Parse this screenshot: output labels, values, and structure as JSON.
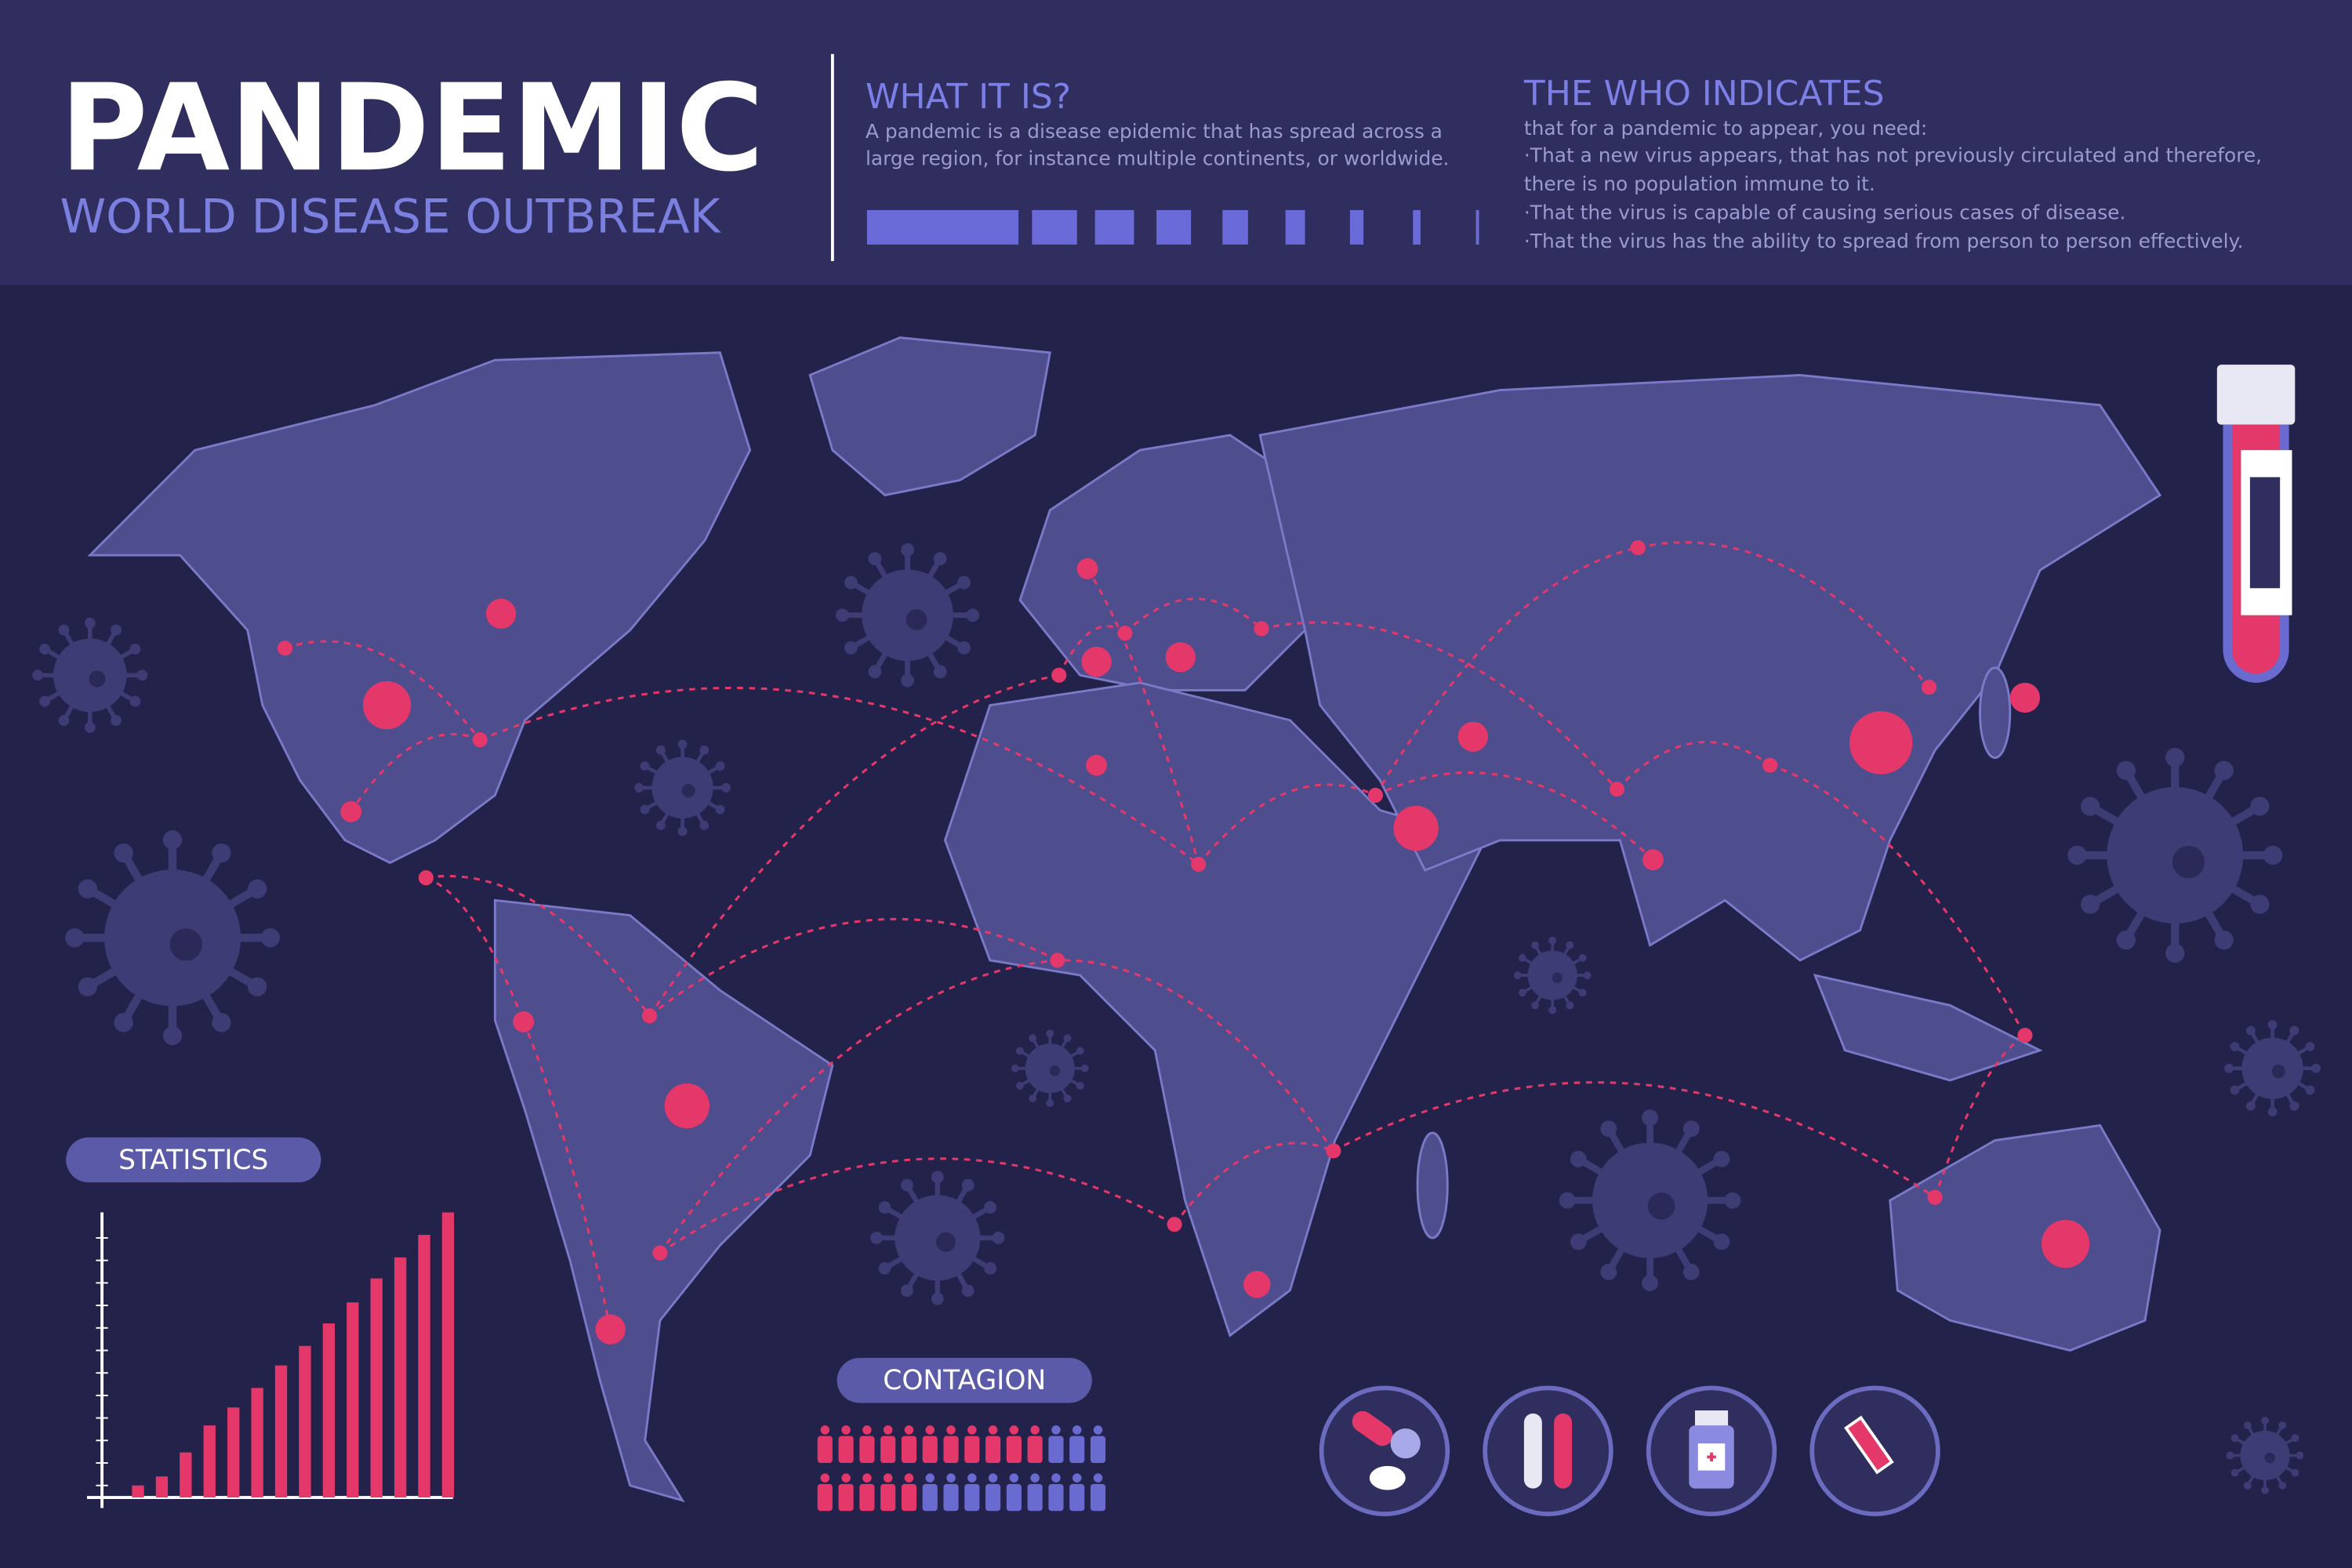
{
  "header": {
    "title": "PANDEMIC",
    "subtitle": "WORLD DISEASE OUTBREAK"
  },
  "what_it_is": {
    "heading": "WHAT IT IS?",
    "lines": [
      "A pandemic is a disease epidemic that has spread across a",
      "large region, for instance multiple continents, or worldwide."
    ]
  },
  "who_indicates": {
    "heading": "THE WHO INDICATES",
    "lines": [
      "that for a pandemic to appear, you need:",
      "·That a new virus appears, that has not previously circulated and therefore,",
      "there is no population immune to it.",
      "·That the virus is capable of causing serious cases of disease.",
      "·That the virus has the ability to spread from person to person effectively."
    ]
  },
  "statistics": {
    "label": "STATISTICS",
    "ylim": [
      0,
      200
    ],
    "values": [
      8,
      14,
      30,
      48,
      60,
      73,
      88,
      101,
      116,
      130,
      146,
      160,
      175,
      190
    ]
  },
  "contagion": {
    "label": "CONTAGION",
    "rows": [
      {
        "infected": 11,
        "people": 14
      },
      {
        "infected": 5,
        "people": 14
      }
    ]
  }
}
